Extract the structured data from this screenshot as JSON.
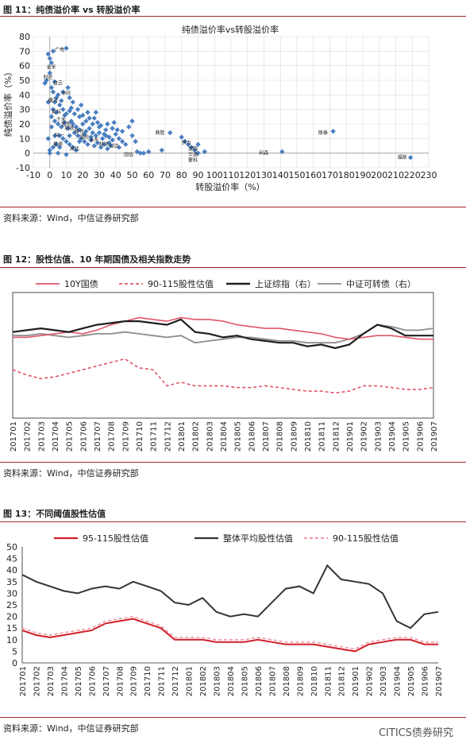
{
  "colors": {
    "accent": "#a1282a",
    "bond": "#e0556a",
    "stockval": "#e0556a",
    "sh": "#1f1f1f",
    "cb": "#8c8c8c",
    "scatter": "#4a7fc0",
    "red": "#d11f2a"
  },
  "fig11": {
    "title": "图 11：纯债溢价率 vs 转股溢价率",
    "source": "资料来源：Wind，中信证券研究部",
    "chart_data": {
      "type": "scatter",
      "title": "纯债溢价率vs转股溢价率",
      "xlabel": "转股溢价率（%）",
      "ylabel": "纯债溢价率（%）",
      "xlim": [
        -10,
        230
      ],
      "ylim": [
        -10,
        80
      ],
      "xticks": [
        -10,
        0,
        10,
        20,
        30,
        40,
        50,
        60,
        70,
        80,
        90,
        100,
        110,
        120,
        130,
        140,
        150,
        160,
        170,
        180,
        190,
        200,
        210,
        220,
        230
      ],
      "yticks": [
        -10,
        0,
        10,
        20,
        30,
        40,
        50,
        60,
        70,
        80
      ],
      "grid": true,
      "points": [
        [
          2,
          70
        ],
        [
          10,
          72
        ],
        [
          1,
          62
        ],
        [
          0,
          55
        ],
        [
          -2,
          50
        ],
        [
          3,
          49
        ],
        [
          1,
          45
        ],
        [
          5,
          40
        ],
        [
          8,
          42
        ],
        [
          12,
          38
        ],
        [
          14,
          35
        ],
        [
          3,
          35
        ],
        [
          6,
          33
        ],
        [
          2,
          30
        ],
        [
          4,
          28
        ],
        [
          8,
          30
        ],
        [
          10,
          27
        ],
        [
          12,
          29
        ],
        [
          15,
          27
        ],
        [
          18,
          25
        ],
        [
          20,
          26
        ],
        [
          1,
          25
        ],
        [
          3,
          22
        ],
        [
          5,
          20
        ],
        [
          7,
          18
        ],
        [
          9,
          21
        ],
        [
          11,
          17
        ],
        [
          13,
          22
        ],
        [
          16,
          18
        ],
        [
          18,
          16
        ],
        [
          22,
          15
        ],
        [
          24,
          17
        ],
        [
          26,
          14
        ],
        [
          28,
          12
        ],
        [
          30,
          14
        ],
        [
          32,
          10
        ],
        [
          34,
          12
        ],
        [
          36,
          11
        ],
        [
          38,
          9
        ],
        [
          40,
          13
        ],
        [
          42,
          10
        ],
        [
          44,
          8
        ],
        [
          15,
          14
        ],
        [
          17,
          12
        ],
        [
          19,
          10
        ],
        [
          21,
          8
        ],
        [
          23,
          6
        ],
        [
          25,
          9
        ],
        [
          27,
          5
        ],
        [
          29,
          7
        ],
        [
          31,
          4
        ],
        [
          33,
          6
        ],
        [
          35,
          3
        ],
        [
          37,
          5
        ],
        [
          6,
          12
        ],
        [
          8,
          10
        ],
        [
          10,
          8
        ],
        [
          12,
          6
        ],
        [
          14,
          4
        ],
        [
          16,
          2
        ],
        [
          4,
          6
        ],
        [
          2,
          4
        ],
        [
          0,
          2
        ],
        [
          5,
          0
        ],
        [
          10,
          -1
        ],
        [
          22,
          22
        ],
        [
          24,
          24
        ],
        [
          26,
          20
        ],
        [
          30,
          18
        ],
        [
          34,
          16
        ],
        [
          38,
          17
        ],
        [
          44,
          15
        ],
        [
          48,
          18
        ],
        [
          50,
          12
        ],
        [
          52,
          8
        ],
        [
          50,
          22
        ],
        [
          53,
          1
        ],
        [
          57,
          0
        ],
        [
          68,
          2
        ],
        [
          73,
          14
        ],
        [
          80,
          11
        ],
        [
          82,
          8
        ],
        [
          84,
          6
        ],
        [
          86,
          4
        ],
        [
          88,
          2
        ],
        [
          90,
          0
        ],
        [
          90,
          6
        ],
        [
          94,
          1
        ],
        [
          141,
          1
        ],
        [
          172,
          15
        ],
        [
          219,
          -3
        ],
        [
          11,
          45
        ],
        [
          7,
          36
        ],
        [
          13,
          31
        ],
        [
          17,
          30
        ],
        [
          19,
          33
        ],
        [
          9,
          26
        ],
        [
          23,
          28
        ],
        [
          27,
          24
        ],
        [
          29,
          21
        ],
        [
          31,
          19
        ],
        [
          35,
          20
        ],
        [
          39,
          21
        ],
        [
          41,
          16
        ],
        [
          25,
          11
        ],
        [
          21,
          13
        ],
        [
          33,
          13
        ],
        [
          36,
          7
        ],
        [
          42,
          4
        ],
        [
          46,
          6
        ],
        [
          55,
          0
        ],
        [
          60,
          1
        ],
        [
          3,
          12
        ],
        [
          1,
          18
        ],
        [
          -1,
          10
        ],
        [
          0,
          0
        ],
        [
          6,
          4
        ],
        [
          12,
          12
        ],
        [
          18,
          8
        ],
        [
          14,
          20
        ],
        [
          20,
          20
        ],
        [
          28,
          28
        ],
        [
          4,
          38
        ],
        [
          2,
          42
        ],
        [
          -1,
          35
        ],
        [
          -3,
          48
        ],
        [
          0,
          65
        ],
        [
          -1,
          68
        ]
      ],
      "annotations": [
        {
          "x": 3,
          "y": 70,
          "text": "广电"
        },
        {
          "x": -2,
          "y": 58,
          "text": "金禾"
        },
        {
          "x": -4,
          "y": 51,
          "text": "时达"
        },
        {
          "x": 2,
          "y": 47,
          "text": "白云"
        },
        {
          "x": 7,
          "y": 40,
          "text": "中环"
        },
        {
          "x": -1,
          "y": 35,
          "text": "横河"
        },
        {
          "x": 1,
          "y": 27,
          "text": "英科"
        },
        {
          "x": 4,
          "y": 22,
          "text": "千禾"
        },
        {
          "x": 7,
          "y": 19,
          "text": "蓝思"
        },
        {
          "x": 9,
          "y": 16,
          "text": "利德"
        },
        {
          "x": 15,
          "y": 14,
          "text": "雅化"
        },
        {
          "x": 3,
          "y": 11,
          "text": "特一"
        },
        {
          "x": 2,
          "y": 5,
          "text": "星源"
        },
        {
          "x": 18,
          "y": 10,
          "text": "国检"
        },
        {
          "x": 24,
          "y": 8,
          "text": "永东"
        },
        {
          "x": 30,
          "y": 5,
          "text": "林洋"
        },
        {
          "x": 36,
          "y": 4,
          "text": "时达"
        },
        {
          "x": 12,
          "y": 2,
          "text": "湖北"
        },
        {
          "x": 45,
          "y": -2,
          "text": "国信"
        },
        {
          "x": 64,
          "y": 13,
          "text": "鼎胜"
        },
        {
          "x": 80,
          "y": 6,
          "text": "伊力"
        },
        {
          "x": 84,
          "y": 2,
          "text": "蓝晓"
        },
        {
          "x": 84,
          "y": -2,
          "text": "华通"
        },
        {
          "x": 84,
          "y": -6,
          "text": "蒙科"
        },
        {
          "x": 127,
          "y": -1,
          "text": "科森"
        },
        {
          "x": 163,
          "y": 13,
          "text": "联泰"
        },
        {
          "x": 211,
          "y": -4,
          "text": "福斯"
        }
      ]
    }
  },
  "fig12": {
    "title": "图 12：股性估值、10 年期国债及相关指数走势",
    "source": "资料来源：Wind，中信证券研究部",
    "chart_data": {
      "type": "line",
      "x": [
        "201701",
        "201702",
        "201703",
        "201704",
        "201705",
        "201706",
        "201707",
        "201708",
        "201709",
        "201710",
        "201711",
        "201712",
        "201801",
        "201802",
        "201803",
        "201804",
        "201805",
        "201806",
        "201807",
        "201808",
        "201809",
        "201810",
        "201811",
        "201812",
        "201901",
        "201902",
        "201903",
        "201904",
        "201905",
        "201906",
        "201907"
      ],
      "series": [
        {
          "name": "10Y国债",
          "values": [
            45,
            45,
            46,
            47,
            48,
            47,
            49,
            52,
            54,
            56,
            55,
            54,
            56,
            55,
            55,
            54,
            52,
            51,
            50,
            50,
            49,
            48,
            47,
            45,
            44,
            45,
            46,
            46,
            45,
            44,
            44
          ]
        },
        {
          "name": "90-115股性估值",
          "values": [
            27,
            24,
            22,
            23,
            25,
            27,
            29,
            31,
            33,
            28,
            27,
            18,
            20,
            18,
            18,
            18,
            17,
            17,
            18,
            17,
            16,
            15,
            15,
            14,
            15,
            18,
            18,
            17,
            16,
            16,
            17
          ]
        },
        {
          "name": "上证综指（右）",
          "values": [
            48,
            49,
            50,
            49,
            48,
            50,
            52,
            53,
            54,
            54,
            53,
            52,
            55,
            48,
            47,
            45,
            46,
            44,
            43,
            42,
            42,
            40,
            41,
            39,
            41,
            47,
            52,
            50,
            46,
            46,
            46
          ]
        },
        {
          "name": "中证可转债（右）",
          "values": [
            46,
            46,
            47,
            46,
            45,
            46,
            47,
            47,
            48,
            47,
            46,
            45,
            46,
            42,
            43,
            44,
            45,
            45,
            44,
            43,
            43,
            42,
            42,
            42,
            44,
            47,
            52,
            51,
            49,
            49,
            50
          ]
        }
      ],
      "y_hidden": true
    }
  },
  "fig13": {
    "title": "图 13：不同阈值股性估值",
    "source": "资料来源：Wind，中信证券研究部",
    "watermark": "CITICS债券研究",
    "chart_data": {
      "type": "line",
      "x": [
        "201701",
        "201702",
        "201703",
        "201704",
        "201705",
        "201706",
        "201707",
        "201708",
        "201709",
        "201710",
        "201711",
        "201712",
        "201801",
        "201802",
        "201803",
        "201804",
        "201805",
        "201806",
        "201807",
        "201808",
        "201809",
        "201810",
        "201811",
        "201812",
        "201901",
        "201902",
        "201903",
        "201904",
        "201905",
        "201906",
        "201907"
      ],
      "ylim": [
        0,
        50
      ],
      "yticks": [
        0,
        5,
        10,
        15,
        20,
        25,
        30,
        35,
        40,
        45,
        50
      ],
      "series": [
        {
          "name": "95-115股性估值",
          "values": [
            14,
            12,
            11,
            12,
            13,
            14,
            17,
            18,
            19,
            17,
            15,
            10,
            10,
            10,
            9,
            9,
            9,
            10,
            9,
            8,
            8,
            8,
            7,
            6,
            5,
            8,
            9,
            10,
            10,
            8,
            8
          ]
        },
        {
          "name": "整体平均股性估值",
          "values": [
            38,
            35,
            33,
            31,
            30,
            32,
            33,
            32,
            35,
            33,
            31,
            26,
            25,
            28,
            22,
            20,
            21,
            20,
            26,
            32,
            33,
            30,
            42,
            36,
            35,
            34,
            30,
            18,
            15,
            21,
            22
          ]
        },
        {
          "name": "90-115股性估值",
          "values": [
            15,
            13,
            12,
            13,
            14,
            15,
            18,
            19,
            20,
            18,
            16,
            11,
            11,
            11,
            10,
            10,
            10,
            11,
            10,
            9,
            9,
            9,
            8,
            7,
            6,
            9,
            10,
            11,
            11,
            9,
            9
          ]
        }
      ]
    }
  }
}
